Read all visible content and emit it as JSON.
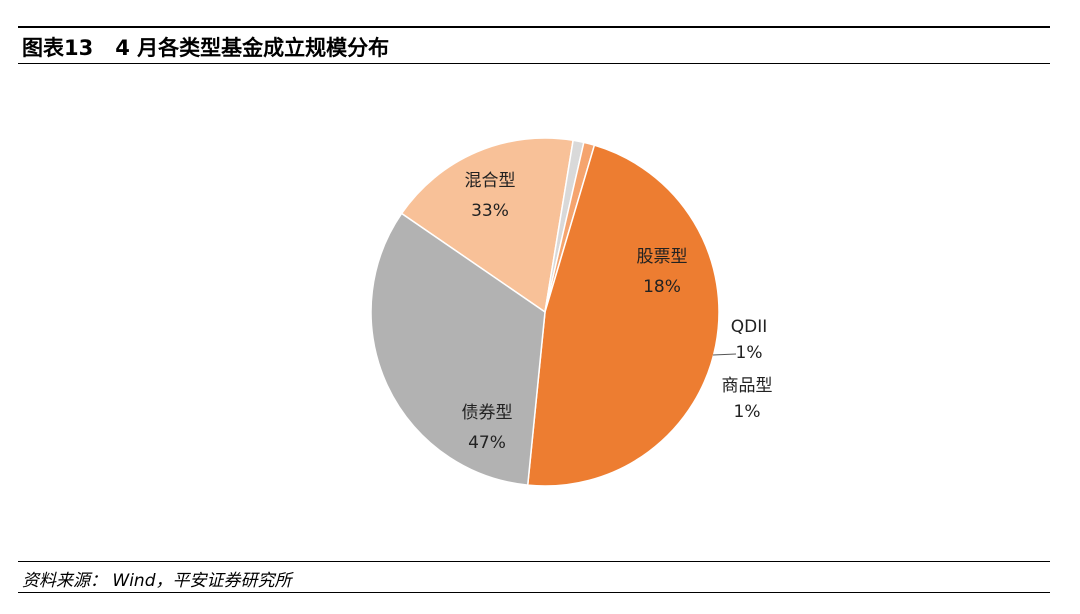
{
  "header": {
    "figure_label": "图表13",
    "title": "4 月各类型基金成立规模分布"
  },
  "source": {
    "text": "资料来源：  Wind，平安证券研究所"
  },
  "chart_data": {
    "type": "pie",
    "title": "",
    "slices": [
      {
        "label": "股票型",
        "value": 18,
        "pct_label": "18%",
        "color": "#F8C198"
      },
      {
        "label": "QDII",
        "value": 1,
        "pct_label": "1%",
        "color": "#D9D9D9"
      },
      {
        "label": "商品型",
        "value": 1,
        "pct_label": "1%",
        "color": "#F5A46E"
      },
      {
        "label": "债券型",
        "value": 47,
        "pct_label": "47%",
        "color": "#ED7D31"
      },
      {
        "label": "混合型",
        "value": 33,
        "pct_label": "33%",
        "color": "#B2B2B2"
      }
    ]
  }
}
